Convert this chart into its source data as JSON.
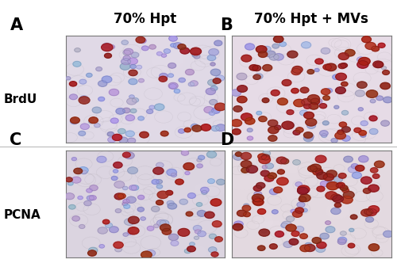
{
  "panel_labels": [
    "A",
    "B",
    "C",
    "D"
  ],
  "row_labels": [
    "BrdU",
    "PCNA"
  ],
  "col_headers": [
    "70% Hpt",
    "70% Hpt + MVs"
  ],
  "label_fontsize": 15,
  "header_fontsize": 12,
  "row_label_fontsize": 11,
  "background_color": "#ffffff",
  "fig_width": 5.0,
  "fig_height": 3.32,
  "panel_A": {
    "bg_color": [
      0.88,
      0.85,
      0.9
    ],
    "n_blue": 90,
    "n_red": 20
  },
  "panel_B": {
    "bg_color": [
      0.9,
      0.86,
      0.9
    ],
    "n_blue": 45,
    "n_red": 75
  },
  "panel_C": {
    "bg_color": [
      0.86,
      0.83,
      0.88
    ],
    "n_blue": 80,
    "n_red": 28
  },
  "panel_D": {
    "bg_color": [
      0.89,
      0.85,
      0.88
    ],
    "n_blue": 40,
    "n_red": 80
  },
  "divider_color": "#bbbbbb",
  "divider_linewidth": 0.8
}
